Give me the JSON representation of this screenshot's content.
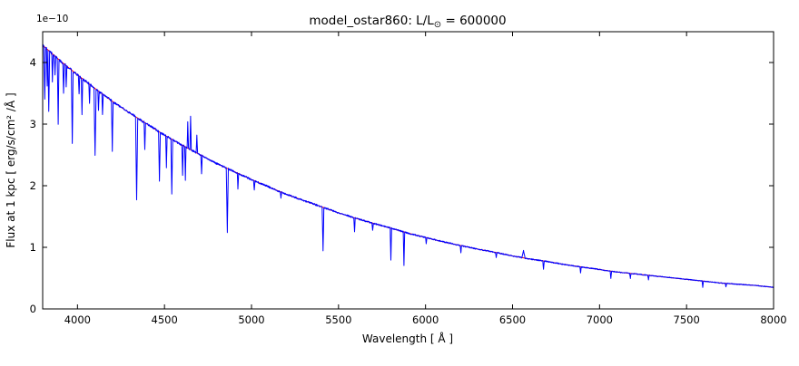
{
  "figure": {
    "title_prefix": "model_ostar860: L/L",
    "title_sub": "⊙",
    "title_suffix": " = 600000",
    "offset_label": "1e−10",
    "xlabel": "Wavelength [ Å ]",
    "ylabel": "Flux at 1 kpc [ erg/s/cm² /Å ]",
    "background": "#ffffff"
  },
  "chart_data": {
    "type": "line",
    "title": "model_ostar860: L/L⊙ = 600000",
    "xlabel": "Wavelength [ Å ]",
    "ylabel": "Flux at 1 kpc [ erg/s/cm² /Å ]",
    "y_offset_factor": "1e-10",
    "xlim": [
      3800,
      8000
    ],
    "ylim": [
      0,
      4.5
    ],
    "xticks": [
      4000,
      4500,
      5000,
      5500,
      6000,
      6500,
      7000,
      7500,
      8000
    ],
    "yticks": [
      0,
      1,
      2,
      3,
      4
    ],
    "grid": false,
    "legend": null,
    "series": [
      {
        "name": "spectrum",
        "description": "blue stellar spectrum with absorption and emission lines",
        "color": "#0000ff"
      },
      {
        "name": "continuum_fit",
        "description": "smooth red continuum fit",
        "color": "#ff0000"
      }
    ],
    "continuum": {
      "units": "1e-10 erg/s/cm2/A versus Angstrom",
      "x0": 3800,
      "dx": 100,
      "y": [
        4.28,
        4.03,
        3.8,
        3.58,
        3.37,
        3.18,
        3.0,
        2.82,
        2.66,
        2.51,
        2.36,
        2.23,
        2.1,
        1.98,
        1.86,
        1.76,
        1.66,
        1.56,
        1.47,
        1.39,
        1.31,
        1.23,
        1.16,
        1.09,
        1.03,
        0.97,
        0.92,
        0.86,
        0.81,
        0.77,
        0.72,
        0.68,
        0.64,
        0.6,
        0.57,
        0.54,
        0.51,
        0.48,
        0.45,
        0.42,
        0.4,
        0.38,
        0.35
      ]
    },
    "lines_columns": [
      "center_angstrom",
      "delta_flux_1e-10",
      "half_width_angstrom"
    ],
    "lines": [
      [
        3812,
        -0.85,
        5
      ],
      [
        3826,
        -0.6,
        4
      ],
      [
        3835,
        -1.0,
        5
      ],
      [
        3856,
        -0.45,
        4
      ],
      [
        3871,
        -0.3,
        4
      ],
      [
        3889,
        -1.05,
        5
      ],
      [
        3920,
        -0.5,
        4
      ],
      [
        3935,
        -0.35,
        4
      ],
      [
        3970,
        -1.2,
        5
      ],
      [
        4009,
        -0.3,
        4
      ],
      [
        4026,
        -0.6,
        4
      ],
      [
        4069,
        -0.3,
        4
      ],
      [
        4101,
        -1.1,
        6
      ],
      [
        4121,
        -0.3,
        4
      ],
      [
        4144,
        -0.35,
        4
      ],
      [
        4200,
        -0.8,
        5
      ],
      [
        4340,
        -1.35,
        6
      ],
      [
        4387,
        -0.45,
        4
      ],
      [
        4471,
        -0.8,
        5
      ],
      [
        4511,
        -0.5,
        4
      ],
      [
        4542,
        -0.9,
        5
      ],
      [
        4604,
        -0.5,
        4
      ],
      [
        4620,
        -0.55,
        4
      ],
      [
        4634,
        0.42,
        4
      ],
      [
        4650,
        0.55,
        4
      ],
      [
        4686,
        0.28,
        4
      ],
      [
        4713,
        -0.3,
        4
      ],
      [
        4861,
        -1.05,
        6
      ],
      [
        4922,
        -0.25,
        4
      ],
      [
        5016,
        -0.16,
        4
      ],
      [
        5169,
        -0.1,
        4
      ],
      [
        5411,
        -0.7,
        5
      ],
      [
        5592,
        -0.22,
        4
      ],
      [
        5696,
        -0.12,
        4
      ],
      [
        5801,
        -0.52,
        4
      ],
      [
        5876,
        -0.55,
        4
      ],
      [
        6004,
        -0.1,
        4
      ],
      [
        6203,
        -0.12,
        4
      ],
      [
        6406,
        -0.09,
        4
      ],
      [
        6563,
        0.12,
        9
      ],
      [
        6678,
        -0.14,
        4
      ],
      [
        6891,
        -0.1,
        4
      ],
      [
        7065,
        -0.12,
        4
      ],
      [
        7177,
        -0.08,
        4
      ],
      [
        7281,
        -0.07,
        4
      ],
      [
        7593,
        -0.1,
        4
      ],
      [
        7726,
        -0.06,
        4
      ]
    ]
  }
}
